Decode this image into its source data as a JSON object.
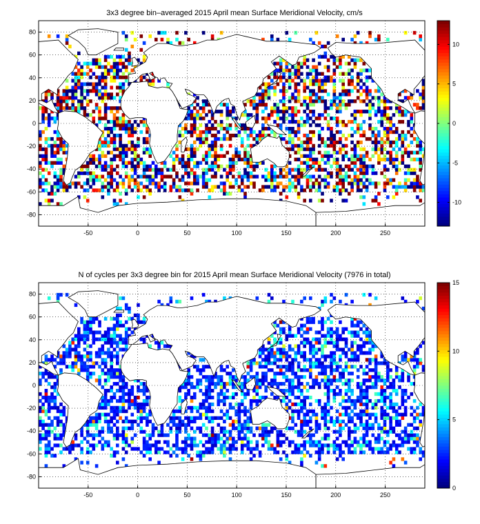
{
  "colors": {
    "ocean_bg": "#ffffff",
    "land_outline": "#000000",
    "grid": "#000000"
  },
  "chart_data": [
    {
      "type": "heatmap",
      "title": "3x3 degree bin–averaged 2015 April mean Surface Meridional Velocity, cm/s",
      "xlabel": "",
      "ylabel": "",
      "xlim": [
        -100,
        290
      ],
      "ylim": [
        -90,
        90
      ],
      "xticks": [
        -50,
        0,
        50,
        100,
        150,
        200,
        250
      ],
      "yticks": [
        -80,
        -60,
        -40,
        -20,
        0,
        20,
        40,
        60,
        80
      ],
      "grid": true,
      "bin_size_deg": 3,
      "colorbar": {
        "colormap": "jet",
        "range": [
          -13,
          13
        ],
        "ticks": [
          -10,
          -5,
          0,
          5,
          10
        ],
        "tick_labels": [
          "-10",
          "-5",
          "0",
          "5",
          "10"
        ]
      },
      "summary": "Mixed positive and negative velocities over all ocean basins, strongest extremes in mid-latitudes and tropics"
    },
    {
      "type": "heatmap",
      "title": "N of cycles per 3x3 degree bin for 2015 April mean Surface Meridional Velocity (7976 in total)",
      "xlabel": "",
      "ylabel": "",
      "xlim": [
        -100,
        290
      ],
      "ylim": [
        -90,
        90
      ],
      "xticks": [
        -50,
        0,
        50,
        100,
        150,
        200,
        250
      ],
      "yticks": [
        -80,
        -60,
        -40,
        -20,
        0,
        20,
        40,
        60,
        80
      ],
      "grid": true,
      "bin_size_deg": 3,
      "total_cycles": 7976,
      "colorbar": {
        "colormap": "jet",
        "range": [
          0,
          15
        ],
        "ticks": [
          0,
          5,
          10,
          15
        ],
        "tick_labels": [
          "0",
          "5",
          "10",
          "15"
        ]
      },
      "summary": "Most bins hold 1-4 cycles; higher counts in Mediterranean, Red Sea, Japan Sea and northwest Pacific"
    }
  ]
}
